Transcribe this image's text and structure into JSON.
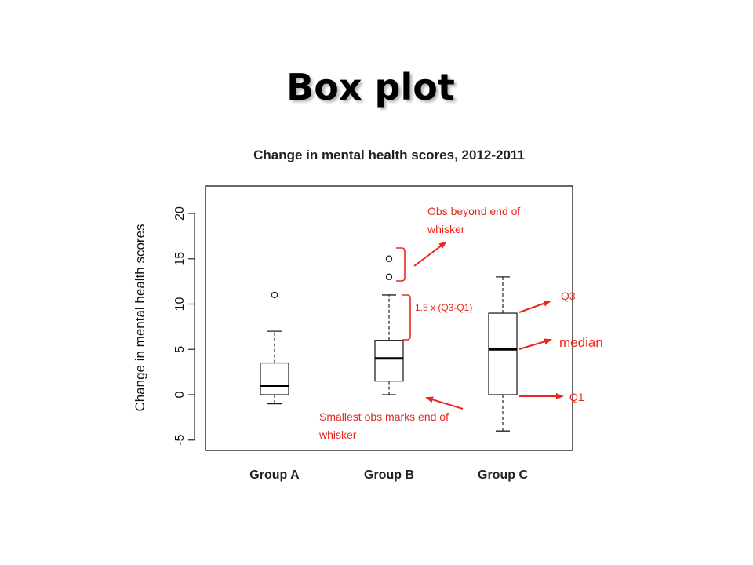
{
  "slide": {
    "title": "Box plot"
  },
  "chart_data": {
    "type": "boxplot",
    "title": "Change in mental health scores, 2012-2011",
    "xlabel": "",
    "ylabel": "Change in mental health scores",
    "ylim": [
      -6,
      23
    ],
    "yticks": [
      -5,
      0,
      5,
      10,
      15,
      20
    ],
    "ytick_labels": [
      "-5",
      "0",
      "5",
      "10",
      "15",
      "20"
    ],
    "categories": [
      "Group A",
      "Group B",
      "Group C"
    ],
    "boxes": [
      {
        "category": "Group A",
        "whisker_low": -1,
        "q1": 0,
        "median": 1,
        "q3": 3.5,
        "whisker_high": 7,
        "outliers": [
          11
        ]
      },
      {
        "category": "Group B",
        "whisker_low": 0,
        "q1": 1.5,
        "median": 4,
        "q3": 6,
        "whisker_high": 11,
        "outliers": [
          13,
          15
        ]
      },
      {
        "category": "Group C",
        "whisker_low": -4,
        "q1": 0,
        "median": 5,
        "q3": 9,
        "whisker_high": 13,
        "outliers": []
      }
    ],
    "grid": false,
    "legend": "none"
  },
  "annotations": {
    "outliers_note": [
      "Obs beyond end of",
      "whisker"
    ],
    "iqr_note": "1.5 x (Q3-Q1)",
    "smallest_note": [
      "Smallest obs marks end of",
      "whisker"
    ],
    "q3_label": "Q3",
    "median_label": "median",
    "q1_label": "Q1",
    "color": "#e8281e"
  }
}
